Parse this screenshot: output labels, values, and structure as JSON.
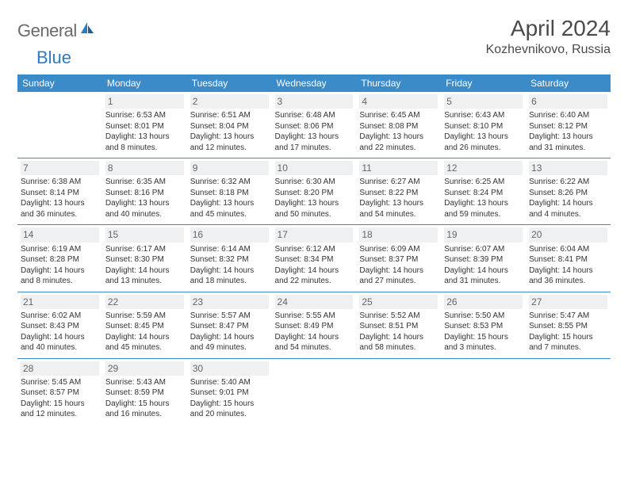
{
  "brand": {
    "text1": "General",
    "text2": "Blue"
  },
  "title": "April 2024",
  "location": "Kozhevnikovo, Russia",
  "colors": {
    "header_bg": "#3b8bc9",
    "header_fg": "#ffffff",
    "daynum_bg": "#eef0f2",
    "row_border": "#3b8bc9",
    "logo_gray": "#6b6b6b",
    "logo_blue": "#2f7bbf"
  },
  "day_headers": [
    "Sunday",
    "Monday",
    "Tuesday",
    "Wednesday",
    "Thursday",
    "Friday",
    "Saturday"
  ],
  "weeks": [
    [
      {
        "n": "",
        "sr": "",
        "ss": "",
        "dl": ""
      },
      {
        "n": "1",
        "sr": "6:53 AM",
        "ss": "8:01 PM",
        "dl": "13 hours and 8 minutes."
      },
      {
        "n": "2",
        "sr": "6:51 AM",
        "ss": "8:04 PM",
        "dl": "13 hours and 12 minutes."
      },
      {
        "n": "3",
        "sr": "6:48 AM",
        "ss": "8:06 PM",
        "dl": "13 hours and 17 minutes."
      },
      {
        "n": "4",
        "sr": "6:45 AM",
        "ss": "8:08 PM",
        "dl": "13 hours and 22 minutes."
      },
      {
        "n": "5",
        "sr": "6:43 AM",
        "ss": "8:10 PM",
        "dl": "13 hours and 26 minutes."
      },
      {
        "n": "6",
        "sr": "6:40 AM",
        "ss": "8:12 PM",
        "dl": "13 hours and 31 minutes."
      }
    ],
    [
      {
        "n": "7",
        "sr": "6:38 AM",
        "ss": "8:14 PM",
        "dl": "13 hours and 36 minutes."
      },
      {
        "n": "8",
        "sr": "6:35 AM",
        "ss": "8:16 PM",
        "dl": "13 hours and 40 minutes."
      },
      {
        "n": "9",
        "sr": "6:32 AM",
        "ss": "8:18 PM",
        "dl": "13 hours and 45 minutes."
      },
      {
        "n": "10",
        "sr": "6:30 AM",
        "ss": "8:20 PM",
        "dl": "13 hours and 50 minutes."
      },
      {
        "n": "11",
        "sr": "6:27 AM",
        "ss": "8:22 PM",
        "dl": "13 hours and 54 minutes."
      },
      {
        "n": "12",
        "sr": "6:25 AM",
        "ss": "8:24 PM",
        "dl": "13 hours and 59 minutes."
      },
      {
        "n": "13",
        "sr": "6:22 AM",
        "ss": "8:26 PM",
        "dl": "14 hours and 4 minutes."
      }
    ],
    [
      {
        "n": "14",
        "sr": "6:19 AM",
        "ss": "8:28 PM",
        "dl": "14 hours and 8 minutes."
      },
      {
        "n": "15",
        "sr": "6:17 AM",
        "ss": "8:30 PM",
        "dl": "14 hours and 13 minutes."
      },
      {
        "n": "16",
        "sr": "6:14 AM",
        "ss": "8:32 PM",
        "dl": "14 hours and 18 minutes."
      },
      {
        "n": "17",
        "sr": "6:12 AM",
        "ss": "8:34 PM",
        "dl": "14 hours and 22 minutes."
      },
      {
        "n": "18",
        "sr": "6:09 AM",
        "ss": "8:37 PM",
        "dl": "14 hours and 27 minutes."
      },
      {
        "n": "19",
        "sr": "6:07 AM",
        "ss": "8:39 PM",
        "dl": "14 hours and 31 minutes."
      },
      {
        "n": "20",
        "sr": "6:04 AM",
        "ss": "8:41 PM",
        "dl": "14 hours and 36 minutes."
      }
    ],
    [
      {
        "n": "21",
        "sr": "6:02 AM",
        "ss": "8:43 PM",
        "dl": "14 hours and 40 minutes."
      },
      {
        "n": "22",
        "sr": "5:59 AM",
        "ss": "8:45 PM",
        "dl": "14 hours and 45 minutes."
      },
      {
        "n": "23",
        "sr": "5:57 AM",
        "ss": "8:47 PM",
        "dl": "14 hours and 49 minutes."
      },
      {
        "n": "24",
        "sr": "5:55 AM",
        "ss": "8:49 PM",
        "dl": "14 hours and 54 minutes."
      },
      {
        "n": "25",
        "sr": "5:52 AM",
        "ss": "8:51 PM",
        "dl": "14 hours and 58 minutes."
      },
      {
        "n": "26",
        "sr": "5:50 AM",
        "ss": "8:53 PM",
        "dl": "15 hours and 3 minutes."
      },
      {
        "n": "27",
        "sr": "5:47 AM",
        "ss": "8:55 PM",
        "dl": "15 hours and 7 minutes."
      }
    ],
    [
      {
        "n": "28",
        "sr": "5:45 AM",
        "ss": "8:57 PM",
        "dl": "15 hours and 12 minutes."
      },
      {
        "n": "29",
        "sr": "5:43 AM",
        "ss": "8:59 PM",
        "dl": "15 hours and 16 minutes."
      },
      {
        "n": "30",
        "sr": "5:40 AM",
        "ss": "9:01 PM",
        "dl": "15 hours and 20 minutes."
      },
      {
        "n": "",
        "sr": "",
        "ss": "",
        "dl": ""
      },
      {
        "n": "",
        "sr": "",
        "ss": "",
        "dl": ""
      },
      {
        "n": "",
        "sr": "",
        "ss": "",
        "dl": ""
      },
      {
        "n": "",
        "sr": "",
        "ss": "",
        "dl": ""
      }
    ]
  ],
  "labels": {
    "sunrise_prefix": "Sunrise: ",
    "sunset_prefix": "Sunset: ",
    "daylight_prefix": "Daylight: "
  }
}
